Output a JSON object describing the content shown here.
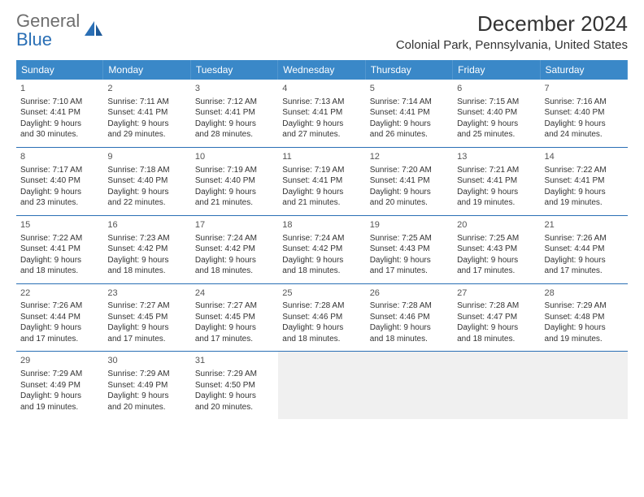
{
  "logo": {
    "line1": "General",
    "line2": "Blue",
    "icon_color": "#2a6fb5"
  },
  "title": "December 2024",
  "location": "Colonial Park, Pennsylvania, United States",
  "colors": {
    "header_bg": "#3a88c8",
    "header_text": "#ffffff",
    "divider": "#2a6fb5",
    "empty_bg": "#f0f0f0",
    "text": "#333333"
  },
  "day_headers": [
    "Sunday",
    "Monday",
    "Tuesday",
    "Wednesday",
    "Thursday",
    "Friday",
    "Saturday"
  ],
  "weeks": [
    [
      {
        "date": "1",
        "sunrise": "Sunrise: 7:10 AM",
        "sunset": "Sunset: 4:41 PM",
        "d1": "Daylight: 9 hours",
        "d2": "and 30 minutes."
      },
      {
        "date": "2",
        "sunrise": "Sunrise: 7:11 AM",
        "sunset": "Sunset: 4:41 PM",
        "d1": "Daylight: 9 hours",
        "d2": "and 29 minutes."
      },
      {
        "date": "3",
        "sunrise": "Sunrise: 7:12 AM",
        "sunset": "Sunset: 4:41 PM",
        "d1": "Daylight: 9 hours",
        "d2": "and 28 minutes."
      },
      {
        "date": "4",
        "sunrise": "Sunrise: 7:13 AM",
        "sunset": "Sunset: 4:41 PM",
        "d1": "Daylight: 9 hours",
        "d2": "and 27 minutes."
      },
      {
        "date": "5",
        "sunrise": "Sunrise: 7:14 AM",
        "sunset": "Sunset: 4:41 PM",
        "d1": "Daylight: 9 hours",
        "d2": "and 26 minutes."
      },
      {
        "date": "6",
        "sunrise": "Sunrise: 7:15 AM",
        "sunset": "Sunset: 4:40 PM",
        "d1": "Daylight: 9 hours",
        "d2": "and 25 minutes."
      },
      {
        "date": "7",
        "sunrise": "Sunrise: 7:16 AM",
        "sunset": "Sunset: 4:40 PM",
        "d1": "Daylight: 9 hours",
        "d2": "and 24 minutes."
      }
    ],
    [
      {
        "date": "8",
        "sunrise": "Sunrise: 7:17 AM",
        "sunset": "Sunset: 4:40 PM",
        "d1": "Daylight: 9 hours",
        "d2": "and 23 minutes."
      },
      {
        "date": "9",
        "sunrise": "Sunrise: 7:18 AM",
        "sunset": "Sunset: 4:40 PM",
        "d1": "Daylight: 9 hours",
        "d2": "and 22 minutes."
      },
      {
        "date": "10",
        "sunrise": "Sunrise: 7:19 AM",
        "sunset": "Sunset: 4:40 PM",
        "d1": "Daylight: 9 hours",
        "d2": "and 21 minutes."
      },
      {
        "date": "11",
        "sunrise": "Sunrise: 7:19 AM",
        "sunset": "Sunset: 4:41 PM",
        "d1": "Daylight: 9 hours",
        "d2": "and 21 minutes."
      },
      {
        "date": "12",
        "sunrise": "Sunrise: 7:20 AM",
        "sunset": "Sunset: 4:41 PM",
        "d1": "Daylight: 9 hours",
        "d2": "and 20 minutes."
      },
      {
        "date": "13",
        "sunrise": "Sunrise: 7:21 AM",
        "sunset": "Sunset: 4:41 PM",
        "d1": "Daylight: 9 hours",
        "d2": "and 19 minutes."
      },
      {
        "date": "14",
        "sunrise": "Sunrise: 7:22 AM",
        "sunset": "Sunset: 4:41 PM",
        "d1": "Daylight: 9 hours",
        "d2": "and 19 minutes."
      }
    ],
    [
      {
        "date": "15",
        "sunrise": "Sunrise: 7:22 AM",
        "sunset": "Sunset: 4:41 PM",
        "d1": "Daylight: 9 hours",
        "d2": "and 18 minutes."
      },
      {
        "date": "16",
        "sunrise": "Sunrise: 7:23 AM",
        "sunset": "Sunset: 4:42 PM",
        "d1": "Daylight: 9 hours",
        "d2": "and 18 minutes."
      },
      {
        "date": "17",
        "sunrise": "Sunrise: 7:24 AM",
        "sunset": "Sunset: 4:42 PM",
        "d1": "Daylight: 9 hours",
        "d2": "and 18 minutes."
      },
      {
        "date": "18",
        "sunrise": "Sunrise: 7:24 AM",
        "sunset": "Sunset: 4:42 PM",
        "d1": "Daylight: 9 hours",
        "d2": "and 18 minutes."
      },
      {
        "date": "19",
        "sunrise": "Sunrise: 7:25 AM",
        "sunset": "Sunset: 4:43 PM",
        "d1": "Daylight: 9 hours",
        "d2": "and 17 minutes."
      },
      {
        "date": "20",
        "sunrise": "Sunrise: 7:25 AM",
        "sunset": "Sunset: 4:43 PM",
        "d1": "Daylight: 9 hours",
        "d2": "and 17 minutes."
      },
      {
        "date": "21",
        "sunrise": "Sunrise: 7:26 AM",
        "sunset": "Sunset: 4:44 PM",
        "d1": "Daylight: 9 hours",
        "d2": "and 17 minutes."
      }
    ],
    [
      {
        "date": "22",
        "sunrise": "Sunrise: 7:26 AM",
        "sunset": "Sunset: 4:44 PM",
        "d1": "Daylight: 9 hours",
        "d2": "and 17 minutes."
      },
      {
        "date": "23",
        "sunrise": "Sunrise: 7:27 AM",
        "sunset": "Sunset: 4:45 PM",
        "d1": "Daylight: 9 hours",
        "d2": "and 17 minutes."
      },
      {
        "date": "24",
        "sunrise": "Sunrise: 7:27 AM",
        "sunset": "Sunset: 4:45 PM",
        "d1": "Daylight: 9 hours",
        "d2": "and 17 minutes."
      },
      {
        "date": "25",
        "sunrise": "Sunrise: 7:28 AM",
        "sunset": "Sunset: 4:46 PM",
        "d1": "Daylight: 9 hours",
        "d2": "and 18 minutes."
      },
      {
        "date": "26",
        "sunrise": "Sunrise: 7:28 AM",
        "sunset": "Sunset: 4:46 PM",
        "d1": "Daylight: 9 hours",
        "d2": "and 18 minutes."
      },
      {
        "date": "27",
        "sunrise": "Sunrise: 7:28 AM",
        "sunset": "Sunset: 4:47 PM",
        "d1": "Daylight: 9 hours",
        "d2": "and 18 minutes."
      },
      {
        "date": "28",
        "sunrise": "Sunrise: 7:29 AM",
        "sunset": "Sunset: 4:48 PM",
        "d1": "Daylight: 9 hours",
        "d2": "and 19 minutes."
      }
    ],
    [
      {
        "date": "29",
        "sunrise": "Sunrise: 7:29 AM",
        "sunset": "Sunset: 4:49 PM",
        "d1": "Daylight: 9 hours",
        "d2": "and 19 minutes."
      },
      {
        "date": "30",
        "sunrise": "Sunrise: 7:29 AM",
        "sunset": "Sunset: 4:49 PM",
        "d1": "Daylight: 9 hours",
        "d2": "and 20 minutes."
      },
      {
        "date": "31",
        "sunrise": "Sunrise: 7:29 AM",
        "sunset": "Sunset: 4:50 PM",
        "d1": "Daylight: 9 hours",
        "d2": "and 20 minutes."
      },
      {
        "empty": true
      },
      {
        "empty": true
      },
      {
        "empty": true
      },
      {
        "empty": true
      }
    ]
  ]
}
